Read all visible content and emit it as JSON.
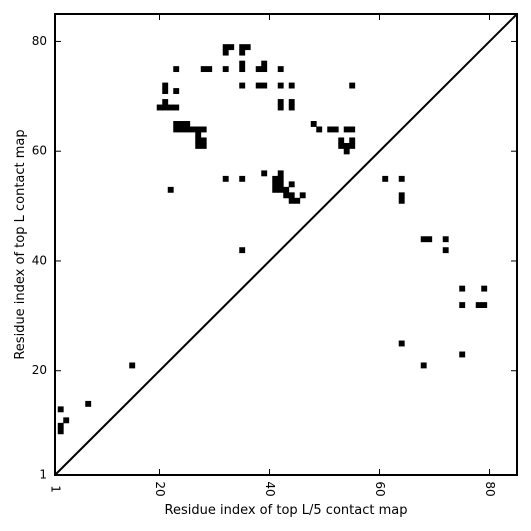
{
  "chart_data": {
    "type": "heatmap",
    "xlabel": "Residue index of top L/5 contact map",
    "ylabel": "Residue index of top L contact map",
    "xlim": [
      1,
      85
    ],
    "ylim": [
      1,
      85
    ],
    "xticks": [
      1,
      20,
      40,
      60,
      80
    ],
    "yticks": [
      1,
      20,
      40,
      60,
      80
    ],
    "xtick_labels": [
      "1",
      "20",
      "40",
      "60",
      "80"
    ],
    "ytick_labels": [
      "1",
      "20",
      "40",
      "60",
      "80"
    ],
    "diagonal": true,
    "cell_color": "#000000",
    "background_color": "#ffffff",
    "cells": [
      [
        2,
        13
      ],
      [
        2,
        9
      ],
      [
        2,
        10
      ],
      [
        3,
        11
      ],
      [
        7,
        14
      ],
      [
        15,
        21
      ],
      [
        22,
        53
      ],
      [
        21,
        72
      ],
      [
        21,
        71
      ],
      [
        23,
        75
      ],
      [
        23,
        71
      ],
      [
        21,
        69
      ],
      [
        20,
        68
      ],
      [
        21,
        68
      ],
      [
        22,
        68
      ],
      [
        23,
        68
      ],
      [
        23,
        65
      ],
      [
        24,
        65
      ],
      [
        25,
        65
      ],
      [
        23,
        64
      ],
      [
        24,
        64
      ],
      [
        25,
        64
      ],
      [
        26,
        64
      ],
      [
        27,
        64
      ],
      [
        28,
        64
      ],
      [
        27,
        63
      ],
      [
        27,
        62
      ],
      [
        28,
        62
      ],
      [
        27,
        61
      ],
      [
        28,
        61
      ],
      [
        28,
        75
      ],
      [
        29,
        75
      ],
      [
        32,
        79
      ],
      [
        32,
        78
      ],
      [
        33,
        79
      ],
      [
        35,
        79
      ],
      [
        36,
        79
      ],
      [
        35,
        78
      ],
      [
        32,
        75
      ],
      [
        35,
        76
      ],
      [
        35,
        75
      ],
      [
        38,
        75
      ],
      [
        39,
        75
      ],
      [
        39,
        76
      ],
      [
        35,
        72
      ],
      [
        38,
        72
      ],
      [
        39,
        72
      ],
      [
        42,
        75
      ],
      [
        42,
        72
      ],
      [
        44,
        72
      ],
      [
        42,
        69
      ],
      [
        42,
        68
      ],
      [
        44,
        69
      ],
      [
        44,
        68
      ],
      [
        48,
        65
      ],
      [
        49,
        64
      ],
      [
        51,
        64
      ],
      [
        52,
        64
      ],
      [
        54,
        64
      ],
      [
        55,
        64
      ],
      [
        53,
        62
      ],
      [
        55,
        62
      ],
      [
        53,
        61
      ],
      [
        54,
        61
      ],
      [
        55,
        61
      ],
      [
        54,
        60
      ],
      [
        55,
        72
      ],
      [
        32,
        55
      ],
      [
        35,
        55
      ],
      [
        39,
        56
      ],
      [
        41,
        55
      ],
      [
        42,
        55
      ],
      [
        42,
        56
      ],
      [
        41,
        54
      ],
      [
        42,
        54
      ],
      [
        41,
        53
      ],
      [
        42,
        53
      ],
      [
        43,
        53
      ],
      [
        44,
        54
      ],
      [
        43,
        52
      ],
      [
        44,
        52
      ],
      [
        46,
        52
      ],
      [
        44,
        51
      ],
      [
        45,
        51
      ],
      [
        35,
        42
      ],
      [
        61,
        55
      ],
      [
        64,
        55
      ],
      [
        64,
        52
      ],
      [
        64,
        51
      ],
      [
        68,
        44
      ],
      [
        69,
        44
      ],
      [
        72,
        44
      ],
      [
        72,
        42
      ],
      [
        75,
        35
      ],
      [
        79,
        35
      ],
      [
        75,
        32
      ],
      [
        78,
        32
      ],
      [
        79,
        32
      ],
      [
        64,
        25
      ],
      [
        68,
        21
      ],
      [
        75,
        23
      ]
    ]
  }
}
